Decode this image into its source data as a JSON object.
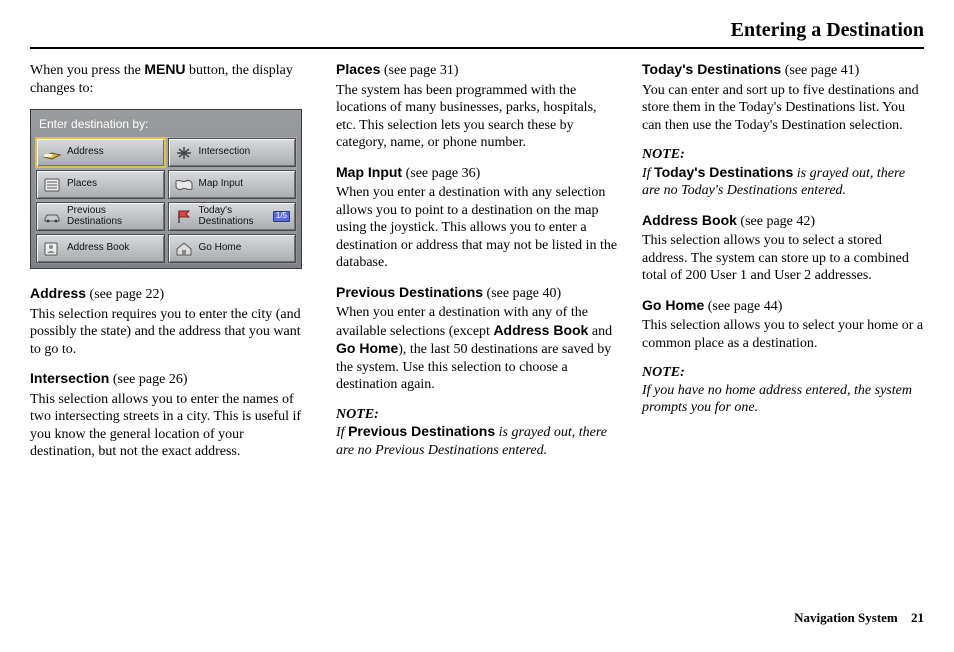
{
  "page": {
    "title": "Entering a Destination",
    "footer_label": "Navigation System",
    "number": "21"
  },
  "col1": {
    "intro_pre": "When you press the ",
    "intro_bold": "MENU",
    "intro_post": " button, the display changes to:",
    "screenshot": {
      "title": "Enter destination by:",
      "buttons": [
        {
          "label": "Address",
          "icon": "book",
          "selected": true
        },
        {
          "label": "Intersection",
          "icon": "cross"
        },
        {
          "label": "Places",
          "icon": "list"
        },
        {
          "label": "Map Input",
          "icon": "map"
        },
        {
          "label": "Previous\nDestinations",
          "icon": "car"
        },
        {
          "label": "Today's\nDestinations",
          "icon": "flag",
          "badge": "1/5"
        },
        {
          "label": "Address Book",
          "icon": "abook"
        },
        {
          "label": "Go Home",
          "icon": "home"
        }
      ]
    },
    "address": {
      "title": "Address",
      "ref": " (see page 22)",
      "body": "This selection requires you to enter the city (and possibly the state) and the address that you want to go to."
    },
    "intersection": {
      "title": "Intersection",
      "ref": " (see page 26)",
      "body": "This selection allows you to enter the names of two intersecting streets in a city. This is useful if you know the general location of your destination, but not the exact address."
    }
  },
  "col2": {
    "places": {
      "title": "Places",
      "ref": " (see page 31)",
      "body": "The system has been programmed with the locations of many businesses, parks, hospitals, etc. This selection lets you search these by category, name, or phone number."
    },
    "mapinput": {
      "title": "Map Input",
      "ref": " (see page 36)",
      "body": "When you enter a destination with any selection allows you to point to a destination on the map using the joystick. This allows you to enter a destination or address that may not be listed in the database."
    },
    "prev": {
      "title": "Previous Destinations",
      "ref": " (see page 40)",
      "body_pre": "When you enter a destination with any of the available selections (except ",
      "body_b1": "Address Book",
      "body_mid": " and ",
      "body_b2": "Go Home",
      "body_post": "), the last 50 destinations are saved by the system. Use this selection to choose a destination again."
    },
    "note1": {
      "label": "NOTE:",
      "pre": "If ",
      "bold": "Previous Destinations",
      "post": " is grayed out, there are no Previous Destinations entered."
    }
  },
  "col3": {
    "today": {
      "title": "Today's Destinations",
      "ref": " (see page 41)",
      "body": "You can enter and sort up to five destinations and store them in the Today's Destinations list. You can then use the Today's Destination selection."
    },
    "note2": {
      "label": "NOTE:",
      "pre": "If ",
      "bold": "Today's Destinations",
      "post": " is grayed out, there are no Today's Destinations entered."
    },
    "abook": {
      "title": "Address Book",
      "ref": " (see page 42)",
      "body": "This selection allows you to select a stored address. The system can store up to a combined total of  200 User 1 and User 2 addresses."
    },
    "gohome": {
      "title": "Go Home",
      "ref": " (see page 44)",
      "body": "This selection allows you to select your home or a common place as a destination."
    },
    "note3": {
      "label": "NOTE:",
      "body": "If you have no home address entered, the system prompts you for one."
    }
  }
}
